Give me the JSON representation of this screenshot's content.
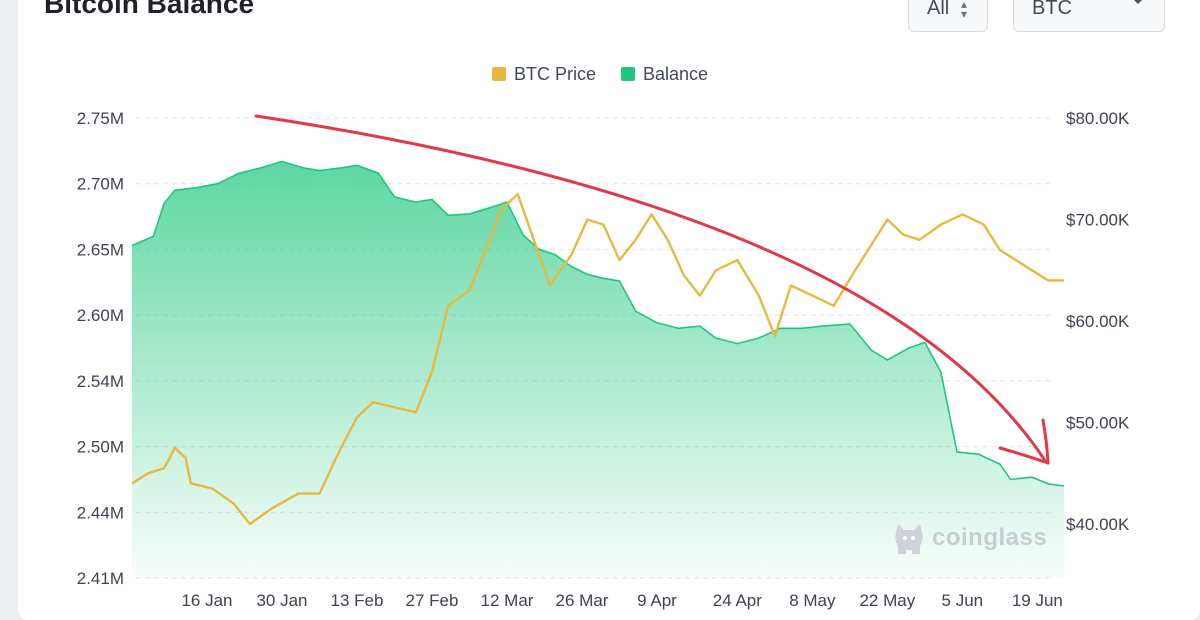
{
  "header": {
    "title": "Bitcoin Balance",
    "range_select": "All",
    "coin_select": "BTC"
  },
  "watermark": "coinglass",
  "colors": {
    "btc_price": "#e7b93f",
    "balance": "#1fc77e",
    "trend_arrow": "#e0394a",
    "grid": "#e1e4e8"
  },
  "chart_data": {
    "type": "area",
    "legend": [
      "BTC Price",
      "Balance"
    ],
    "legend_position": "top-center",
    "grid": true,
    "x": [
      "16 Jan",
      "30 Jan",
      "13 Feb",
      "27 Feb",
      "12 Mar",
      "26 Mar",
      "9 Apr",
      "24 Apr",
      "8 May",
      "22 May",
      "5 Jun",
      "19 Jun"
    ],
    "left_axis": {
      "ticks": [
        "2.75M",
        "2.70M",
        "2.65M",
        "2.60M",
        "2.54M",
        "2.50M",
        "2.44M",
        "2.41M"
      ],
      "ylim": [
        2.41,
        2.75
      ],
      "unit": "M"
    },
    "right_axis": {
      "ticks": [
        "$80.00K",
        "$70.00K",
        "$60.00K",
        "$50.00K",
        "$40.00K"
      ],
      "ylim": [
        36.5,
        80
      ],
      "unit": "K"
    },
    "series": [
      {
        "name": "Balance",
        "chart": "area",
        "axis": "left",
        "points": [
          [
            "2 Jan",
            2.653
          ],
          [
            "6 Jan",
            2.66
          ],
          [
            "8 Jan",
            2.685
          ],
          [
            "10 Jan",
            2.695
          ],
          [
            "14 Jan",
            2.697
          ],
          [
            "18 Jan",
            2.7
          ],
          [
            "22 Jan",
            2.708
          ],
          [
            "26 Jan",
            2.712
          ],
          [
            "30 Jan",
            2.717
          ],
          [
            "3 Feb",
            2.712
          ],
          [
            "6 Feb",
            2.71
          ],
          [
            "10 Feb",
            2.712
          ],
          [
            "13 Feb",
            2.714
          ],
          [
            "17 Feb",
            2.708
          ],
          [
            "20 Feb",
            2.69
          ],
          [
            "24 Feb",
            2.686
          ],
          [
            "27 Feb",
            2.688
          ],
          [
            "1 Mar",
            2.676
          ],
          [
            "5 Mar",
            2.677
          ],
          [
            "9 Mar",
            2.682
          ],
          [
            "12 Mar",
            2.686
          ],
          [
            "15 Mar",
            2.661
          ],
          [
            "18 Mar",
            2.65
          ],
          [
            "21 Mar",
            2.646
          ],
          [
            "24 Mar",
            2.637
          ],
          [
            "27 Mar",
            2.631
          ],
          [
            "30 Mar",
            2.628
          ],
          [
            "2 Apr",
            2.626
          ],
          [
            "5 Apr",
            2.603
          ],
          [
            "9 Apr",
            2.593
          ],
          [
            "13 Apr",
            2.588
          ],
          [
            "17 Apr",
            2.59
          ],
          [
            "20 Apr",
            2.579
          ],
          [
            "24 Apr",
            2.574
          ],
          [
            "28 Apr",
            2.579
          ],
          [
            "2 May",
            2.588
          ],
          [
            "6 May",
            2.588
          ],
          [
            "10 May",
            2.59
          ],
          [
            "15 May",
            2.592
          ],
          [
            "19 May",
            2.568
          ],
          [
            "22 May",
            2.559
          ],
          [
            "26 May",
            2.57
          ],
          [
            "29 May",
            2.575
          ],
          [
            "1 Jun",
            2.548
          ],
          [
            "4 Jun",
            2.495
          ],
          [
            "8 Jun",
            2.493
          ],
          [
            "12 Jun",
            2.484
          ],
          [
            "14 Jun",
            2.47
          ],
          [
            "18 Jun",
            2.472
          ],
          [
            "21 Jun",
            2.466
          ],
          [
            "24 Jun",
            2.464
          ]
        ]
      },
      {
        "name": "BTC Price",
        "chart": "line",
        "axis": "right",
        "points": [
          [
            "2 Jan",
            44.0
          ],
          [
            "5 Jan",
            45.0
          ],
          [
            "8 Jan",
            45.5
          ],
          [
            "10 Jan",
            47.5
          ],
          [
            "12 Jan",
            46.5
          ],
          [
            "13 Jan",
            44.0
          ],
          [
            "17 Jan",
            43.5
          ],
          [
            "21 Jan",
            42.0
          ],
          [
            "24 Jan",
            40.0
          ],
          [
            "28 Jan",
            41.5
          ],
          [
            "2 Feb",
            43.0
          ],
          [
            "6 Feb",
            43.0
          ],
          [
            "10 Feb",
            47.5
          ],
          [
            "13 Feb",
            50.5
          ],
          [
            "16 Feb",
            52.0
          ],
          [
            "20 Feb",
            51.5
          ],
          [
            "24 Feb",
            51.0
          ],
          [
            "27 Feb",
            55.0
          ],
          [
            "1 Mar",
            61.5
          ],
          [
            "5 Mar",
            63.0
          ],
          [
            "8 Mar",
            67.0
          ],
          [
            "11 Mar",
            71.0
          ],
          [
            "14 Mar",
            72.5
          ],
          [
            "17 Mar",
            68.0
          ],
          [
            "20 Mar",
            63.5
          ],
          [
            "24 Mar",
            66.5
          ],
          [
            "27 Mar",
            70.0
          ],
          [
            "30 Mar",
            69.5
          ],
          [
            "2 Apr",
            66.0
          ],
          [
            "5 Apr",
            68.0
          ],
          [
            "8 Apr",
            70.5
          ],
          [
            "11 Apr",
            68.0
          ],
          [
            "14 Apr",
            64.5
          ],
          [
            "17 Apr",
            62.5
          ],
          [
            "20 Apr",
            65.0
          ],
          [
            "24 Apr",
            66.0
          ],
          [
            "28 Apr",
            62.5
          ],
          [
            "1 May",
            58.5
          ],
          [
            "4 May",
            63.5
          ],
          [
            "8 May",
            62.5
          ],
          [
            "12 May",
            61.5
          ],
          [
            "16 May",
            65.0
          ],
          [
            "19 May",
            67.5
          ],
          [
            "22 May",
            70.0
          ],
          [
            "25 May",
            68.5
          ],
          [
            "28 May",
            68.0
          ],
          [
            "1 Jun",
            69.5
          ],
          [
            "5 Jun",
            70.5
          ],
          [
            "9 Jun",
            69.5
          ],
          [
            "12 Jun",
            67.0
          ],
          [
            "15 Jun",
            66.0
          ],
          [
            "18 Jun",
            65.0
          ],
          [
            "21 Jun",
            64.0
          ],
          [
            "24 Jun",
            64.0
          ]
        ]
      }
    ]
  }
}
